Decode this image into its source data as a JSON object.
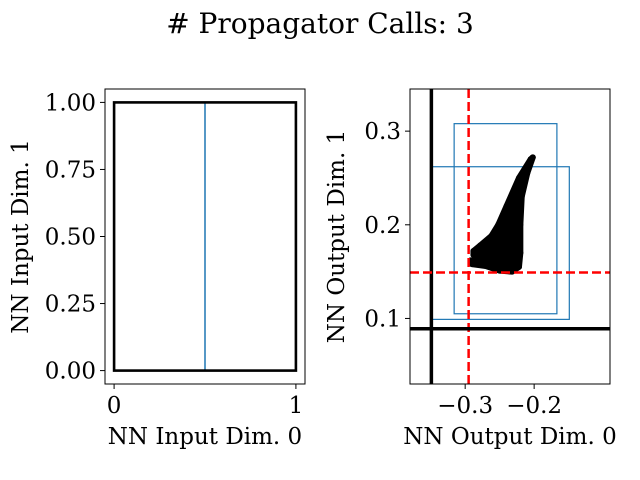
{
  "figure": {
    "title": "# Propagator Calls: 3"
  },
  "chart_data": [
    {
      "type": "box-plot",
      "xlabel": "NN Input Dim. 0",
      "ylabel": "NN Input Dim. 1",
      "xlim": [
        -0.05,
        1.05
      ],
      "ylim": [
        -0.05,
        1.05
      ],
      "xticks": [
        0,
        1
      ],
      "xtick_labels": [
        "0",
        "1"
      ],
      "yticks": [
        0.0,
        0.25,
        0.5,
        0.75,
        1.0
      ],
      "ytick_labels": [
        "0.00",
        "0.25",
        "0.50",
        "0.75",
        "1.00"
      ],
      "outer_box": {
        "x": [
          0,
          1
        ],
        "y": [
          0,
          1
        ],
        "color": "#000000"
      },
      "partition_boxes": [
        {
          "x": [
            0,
            0.5
          ],
          "y": [
            0,
            1
          ],
          "color": "#1f77b4"
        },
        {
          "x": [
            0.5,
            1
          ],
          "y": [
            0,
            1
          ],
          "color": "#1f77b4"
        }
      ]
    },
    {
      "type": "scatter",
      "xlabel": "NN Output Dim. 0",
      "ylabel": "NN Output Dim. 1",
      "xlim": [
        -0.38,
        -0.09
      ],
      "ylim": [
        0.03,
        0.345
      ],
      "xticks": [
        -0.3,
        -0.2
      ],
      "xtick_labels": [
        "−0.3",
        "−0.2"
      ],
      "yticks": [
        0.1,
        0.2,
        0.3
      ],
      "ytick_labels": [
        "0.1",
        "0.2",
        "0.3"
      ],
      "reachable_boxes": [
        {
          "x": [
            -0.316,
            -0.167
          ],
          "y": [
            0.105,
            0.308
          ],
          "color": "#1f77b4"
        },
        {
          "x": [
            -0.349,
            -0.149
          ],
          "y": [
            0.099,
            0.262
          ],
          "color": "#1f77b4"
        }
      ],
      "constraint_lines": {
        "vertical": [
          {
            "x": -0.349,
            "color": "#000000",
            "style": "solid"
          },
          {
            "x": -0.295,
            "color": "#ff0000",
            "style": "dashed"
          }
        ],
        "horizontal": [
          {
            "y": 0.089,
            "color": "#000000",
            "style": "solid"
          },
          {
            "y": 0.149,
            "color": "#ff0000",
            "style": "dashed"
          }
        ]
      },
      "scatter_outline": [
        [
          -0.29,
          0.158
        ],
        [
          -0.27,
          0.156
        ],
        [
          -0.25,
          0.151
        ],
        [
          -0.232,
          0.15
        ],
        [
          -0.222,
          0.155
        ],
        [
          -0.22,
          0.17
        ],
        [
          -0.22,
          0.2
        ],
        [
          -0.218,
          0.23
        ],
        [
          -0.21,
          0.255
        ],
        [
          -0.202,
          0.272
        ],
        [
          -0.205,
          0.27
        ],
        [
          -0.222,
          0.25
        ],
        [
          -0.24,
          0.22
        ],
        [
          -0.252,
          0.2
        ],
        [
          -0.262,
          0.188
        ],
        [
          -0.278,
          0.178
        ],
        [
          -0.288,
          0.172
        ],
        [
          -0.288,
          0.168
        ],
        [
          -0.278,
          0.166
        ],
        [
          -0.282,
          0.162
        ],
        [
          -0.292,
          0.162
        ]
      ],
      "point_color": "#000000"
    }
  ]
}
